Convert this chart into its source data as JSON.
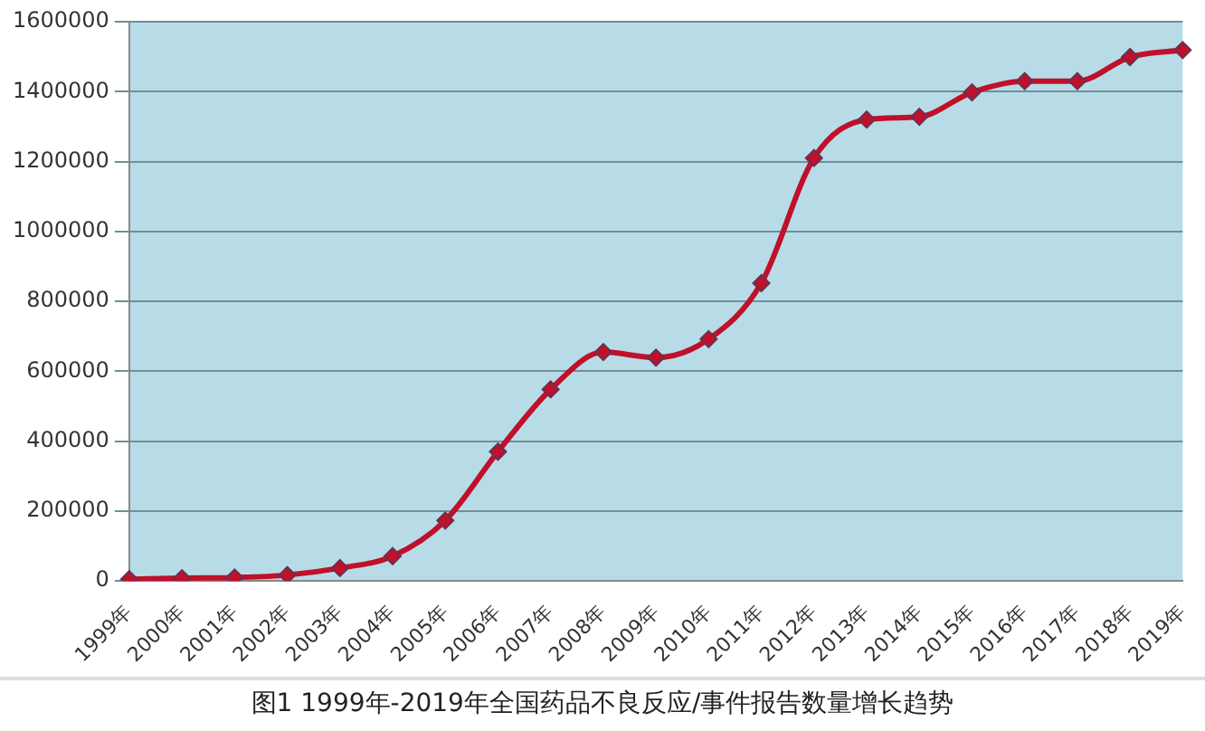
{
  "chart_data": {
    "type": "line",
    "categories": [
      "1999年",
      "2000年",
      "2001年",
      "2002年",
      "2003年",
      "2004年",
      "2005年",
      "2006年",
      "2007年",
      "2008年",
      "2009年",
      "2010年",
      "2011年",
      "2012年",
      "2013年",
      "2014年",
      "2015年",
      "2016年",
      "2017年",
      "2018年",
      "2019年"
    ],
    "series": [
      {
        "color": "#c0102a",
        "values": [
          5000,
          8000,
          10000,
          17000,
          37000,
          71000,
          173000,
          370000,
          548000,
          655000,
          639000,
          692000,
          852000,
          1210000,
          1320000,
          1328000,
          1398000,
          1430000,
          1430000,
          1499000,
          1519000
        ]
      }
    ],
    "ylim": [
      0,
      1600000
    ],
    "yticks": [
      0,
      200000,
      400000,
      600000,
      800000,
      1000000,
      1200000,
      1400000,
      1600000
    ],
    "grid": "y",
    "legend": false,
    "marker": "diamond",
    "line_style": "solid",
    "annotations": [
      "图1 1999年-2019年全国药品不良反应/事件报告数量增长趋势"
    ]
  }
}
